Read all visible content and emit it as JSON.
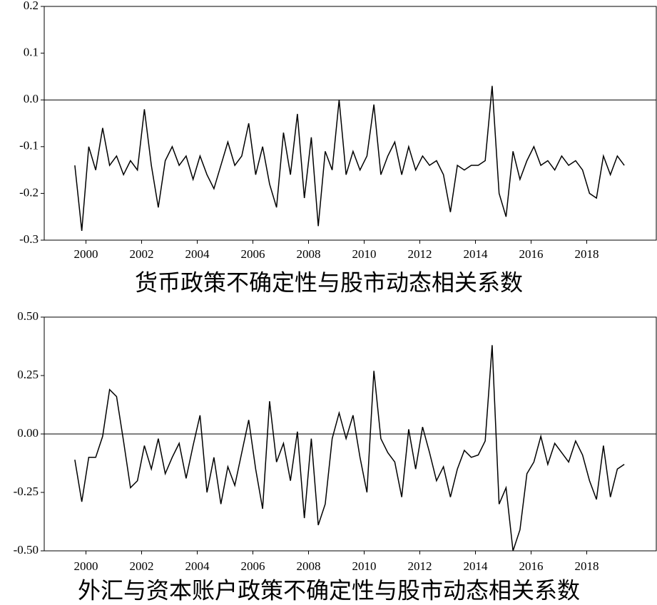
{
  "chart_data": [
    {
      "type": "line",
      "title": "货币政策不确定性与股市动态相关系数",
      "x": [
        1999.6,
        1999.85,
        2000.1,
        2000.35,
        2000.6,
        2000.85,
        2001.1,
        2001.35,
        2001.6,
        2001.85,
        2002.1,
        2002.35,
        2002.6,
        2002.85,
        2003.1,
        2003.35,
        2003.6,
        2003.85,
        2004.1,
        2004.35,
        2004.6,
        2004.85,
        2005.1,
        2005.35,
        2005.6,
        2005.85,
        2006.1,
        2006.35,
        2006.6,
        2006.85,
        2007.1,
        2007.35,
        2007.6,
        2007.85,
        2008.1,
        2008.35,
        2008.6,
        2008.85,
        2009.1,
        2009.35,
        2009.6,
        2009.85,
        2010.1,
        2010.35,
        2010.6,
        2010.85,
        2011.1,
        2011.35,
        2011.6,
        2011.85,
        2012.1,
        2012.35,
        2012.6,
        2012.85,
        2013.1,
        2013.35,
        2013.6,
        2013.85,
        2014.1,
        2014.35,
        2014.6,
        2014.85,
        2015.1,
        2015.35,
        2015.6,
        2015.85,
        2016.1,
        2016.35,
        2016.6,
        2016.85,
        2017.1,
        2017.35,
        2017.6,
        2017.85,
        2018.1,
        2018.35,
        2018.6,
        2018.85,
        2019.1,
        2019.35
      ],
      "values": [
        -0.14,
        -0.28,
        -0.1,
        -0.15,
        -0.06,
        -0.14,
        -0.12,
        -0.16,
        -0.13,
        -0.15,
        -0.02,
        -0.14,
        -0.23,
        -0.13,
        -0.1,
        -0.14,
        -0.12,
        -0.17,
        -0.12,
        -0.16,
        -0.19,
        -0.14,
        -0.09,
        -0.14,
        -0.12,
        -0.05,
        -0.16,
        -0.1,
        -0.18,
        -0.23,
        -0.07,
        -0.16,
        -0.03,
        -0.21,
        -0.08,
        -0.27,
        -0.11,
        -0.15,
        0.0,
        -0.16,
        -0.11,
        -0.15,
        -0.12,
        -0.01,
        -0.16,
        -0.12,
        -0.09,
        -0.16,
        -0.1,
        -0.15,
        -0.12,
        -0.14,
        -0.13,
        -0.16,
        -0.24,
        -0.14,
        -0.15,
        -0.14,
        -0.14,
        -0.13,
        0.03,
        -0.2,
        -0.25,
        -0.11,
        -0.17,
        -0.13,
        -0.1,
        -0.14,
        -0.13,
        -0.15,
        -0.12,
        -0.14,
        -0.13,
        -0.15,
        -0.2,
        -0.21,
        -0.12,
        -0.16,
        -0.12,
        -0.14
      ],
      "color": "#000000",
      "xlim": [
        1998.5,
        2020.5
      ],
      "xticks": [
        2000,
        2002,
        2004,
        2006,
        2008,
        2010,
        2012,
        2014,
        2016,
        2018
      ],
      "ylim": [
        -0.3,
        0.2
      ],
      "yticks": [
        0.2,
        0.1,
        {
          "value": 0,
          "label": "0.0"
        },
        -0.1,
        -0.2,
        -0.3
      ],
      "zero_line": true
    },
    {
      "type": "line",
      "title": "外汇与资本账户政策不确定性与股市动态相关系数",
      "x": [
        1999.6,
        1999.85,
        2000.1,
        2000.35,
        2000.6,
        2000.85,
        2001.1,
        2001.35,
        2001.6,
        2001.85,
        2002.1,
        2002.35,
        2002.6,
        2002.85,
        2003.1,
        2003.35,
        2003.6,
        2003.85,
        2004.1,
        2004.35,
        2004.6,
        2004.85,
        2005.1,
        2005.35,
        2005.6,
        2005.85,
        2006.1,
        2006.35,
        2006.6,
        2006.85,
        2007.1,
        2007.35,
        2007.6,
        2007.85,
        2008.1,
        2008.35,
        2008.6,
        2008.85,
        2009.1,
        2009.35,
        2009.6,
        2009.85,
        2010.1,
        2010.35,
        2010.6,
        2010.85,
        2011.1,
        2011.35,
        2011.6,
        2011.85,
        2012.1,
        2012.35,
        2012.6,
        2012.85,
        2013.1,
        2013.35,
        2013.6,
        2013.85,
        2014.1,
        2014.35,
        2014.6,
        2014.85,
        2015.1,
        2015.35,
        2015.6,
        2015.85,
        2016.1,
        2016.35,
        2016.6,
        2016.85,
        2017.1,
        2017.35,
        2017.6,
        2017.85,
        2018.1,
        2018.35,
        2018.6,
        2018.85,
        2019.1,
        2019.35
      ],
      "values": [
        -0.11,
        -0.29,
        -0.1,
        -0.1,
        -0.01,
        0.19,
        0.16,
        -0.03,
        -0.23,
        -0.2,
        -0.05,
        -0.15,
        -0.02,
        -0.17,
        -0.1,
        -0.04,
        -0.19,
        -0.05,
        0.08,
        -0.25,
        -0.1,
        -0.3,
        -0.14,
        -0.22,
        -0.08,
        0.06,
        -0.15,
        -0.32,
        0.14,
        -0.12,
        -0.04,
        -0.2,
        0.01,
        -0.36,
        -0.02,
        -0.39,
        -0.3,
        -0.02,
        0.09,
        -0.02,
        0.08,
        -0.1,
        -0.25,
        0.27,
        -0.02,
        -0.08,
        -0.12,
        -0.27,
        0.02,
        -0.15,
        0.03,
        -0.08,
        -0.2,
        -0.14,
        -0.27,
        -0.15,
        -0.07,
        -0.1,
        -0.09,
        -0.03,
        0.38,
        -0.3,
        -0.23,
        -0.5,
        -0.41,
        -0.17,
        -0.12,
        -0.01,
        -0.13,
        -0.04,
        -0.08,
        -0.12,
        -0.03,
        -0.09,
        -0.2,
        -0.28,
        -0.05,
        -0.27,
        -0.15,
        -0.13
      ],
      "color": "#000000",
      "xlim": [
        1998.5,
        2020.5
      ],
      "xticks": [
        2000,
        2002,
        2004,
        2006,
        2008,
        2010,
        2012,
        2014,
        2016,
        2018
      ],
      "ylim": [
        -0.5,
        0.5
      ],
      "yticks": [
        {
          "value": 0.5,
          "label": "0.50"
        },
        0.25,
        {
          "value": 0,
          "label": "0.00"
        },
        -0.25,
        {
          "value": -0.5,
          "label": "-0.50"
        }
      ],
      "zero_line": true
    }
  ]
}
